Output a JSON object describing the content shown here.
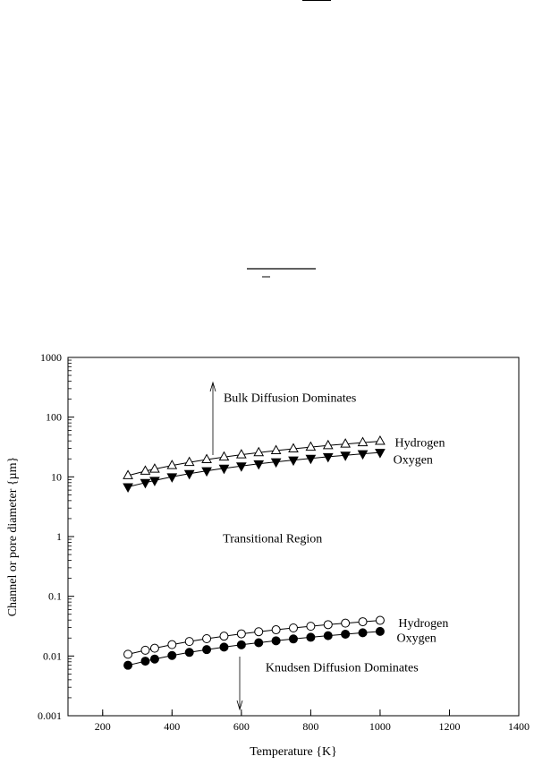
{
  "chart_data": {
    "type": "scatter",
    "title": "",
    "xlabel": "Temperature {K}",
    "ylabel": "Channel or pore diameter {µm}",
    "xlim": [
      100,
      1400
    ],
    "ylim": [
      0.001,
      1000
    ],
    "yscale": "log",
    "grid": false,
    "x_ticks": [
      "200",
      "400",
      "600",
      "800",
      "1000",
      "1200",
      "1400"
    ],
    "y_ticks": [
      "0.001",
      "0.01",
      "0.1",
      "1",
      "10",
      "100",
      "1000"
    ],
    "series": [
      {
        "name": "Hydrogen",
        "marker": "open-triangle-up",
        "x": [
          273,
          323,
          350,
          400,
          450,
          500,
          550,
          600,
          650,
          700,
          750,
          800,
          850,
          900,
          950,
          1000
        ],
        "y": [
          10.5,
          12.5,
          13.5,
          15.5,
          17.5,
          19.5,
          21.5,
          23.5,
          25.5,
          27.5,
          29.5,
          31.5,
          33.5,
          35.5,
          37.5,
          39.5
        ]
      },
      {
        "name": "Oxygen",
        "marker": "filled-triangle-down",
        "x": [
          273,
          323,
          350,
          400,
          450,
          500,
          550,
          600,
          650,
          700,
          750,
          800,
          850,
          900,
          950,
          1000
        ],
        "y": [
          6.8,
          8.0,
          8.7,
          10.0,
          11.3,
          12.6,
          13.9,
          15.2,
          16.5,
          17.8,
          19.1,
          20.4,
          21.7,
          23.0,
          24.3,
          25.6
        ]
      },
      {
        "name": "Hydrogen",
        "marker": "open-circle",
        "x": [
          273,
          323,
          350,
          400,
          450,
          500,
          550,
          600,
          650,
          700,
          750,
          800,
          850,
          900,
          950,
          1000
        ],
        "y": [
          0.0107,
          0.0125,
          0.0135,
          0.0155,
          0.0175,
          0.0195,
          0.0215,
          0.0235,
          0.0255,
          0.0275,
          0.0295,
          0.0315,
          0.0335,
          0.0355,
          0.0375,
          0.0395
        ]
      },
      {
        "name": "Oxygen",
        "marker": "filled-circle",
        "x": [
          273,
          323,
          350,
          400,
          450,
          500,
          550,
          600,
          650,
          700,
          750,
          800,
          850,
          900,
          950,
          1000
        ],
        "y": [
          0.007,
          0.0082,
          0.0089,
          0.0102,
          0.0115,
          0.0128,
          0.0141,
          0.0154,
          0.0167,
          0.018,
          0.0193,
          0.0206,
          0.0219,
          0.0232,
          0.0245,
          0.0258
        ]
      }
    ],
    "annotations": [
      {
        "text": "Bulk Diffusion Dominates",
        "x": 740,
        "y": 180,
        "arrow": "up"
      },
      {
        "text": "Transitional Region",
        "x": 690,
        "y": 0.8
      },
      {
        "text": "Knudsen Diffusion Dominates",
        "x": 890,
        "y": 0.0055,
        "arrow": "down"
      }
    ],
    "series_labels": [
      {
        "text": "Hydrogen",
        "x": 1115,
        "y": 37
      },
      {
        "text": "Oxygen",
        "x": 1095,
        "y": 19
      },
      {
        "text": "Hydrogen",
        "x": 1125,
        "y": 0.035
      },
      {
        "text": "Oxygen",
        "x": 1105,
        "y": 0.02
      }
    ]
  }
}
